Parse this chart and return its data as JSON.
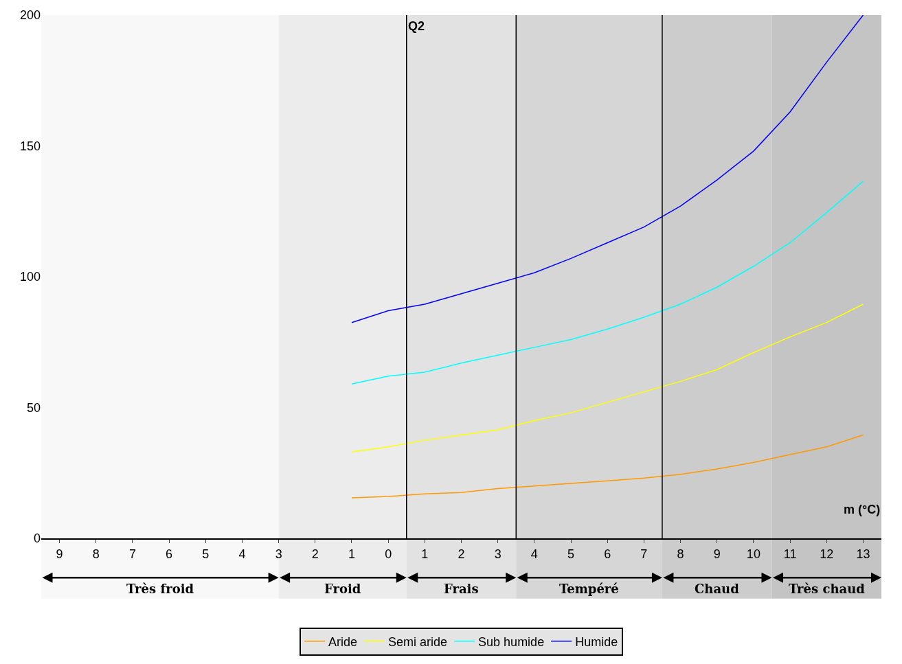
{
  "chart_data": {
    "type": "line",
    "xlabel": "m (°C)",
    "ylabel": "Q2",
    "x": [
      -1,
      0,
      1,
      2,
      3,
      4,
      5,
      6,
      7,
      8,
      9,
      10,
      11,
      12,
      13
    ],
    "series": [
      {
        "name": "Aride",
        "color": "#ff9900",
        "values": [
          15.5,
          16,
          17,
          17.5,
          19,
          20,
          21,
          22,
          23,
          24.5,
          26.5,
          29,
          32,
          35,
          39.5
        ]
      },
      {
        "name": "Semi aride",
        "color": "#ffff00",
        "values": [
          33,
          35,
          37.5,
          39.5,
          41.5,
          45,
          48,
          52,
          56,
          60,
          64.5,
          71,
          77,
          82.5,
          89.5
        ]
      },
      {
        "name": "Sub humide",
        "color": "#00ffff",
        "values": [
          59,
          62,
          63.5,
          67,
          70,
          73,
          76,
          80,
          84.5,
          89.5,
          96,
          104,
          113,
          124.5,
          136.5
        ]
      },
      {
        "name": "Humide",
        "color": "#0000ff",
        "values": [
          82.5,
          87,
          89.5,
          93.5,
          97.5,
          101.5,
          107,
          113,
          119,
          127,
          137,
          148,
          163,
          182,
          200
        ]
      }
    ],
    "xlim": [
      -9.5,
      13.5
    ],
    "ylim": [
      0,
      200
    ],
    "xticks": [
      {
        "value": -9,
        "label": "9"
      },
      {
        "value": -8,
        "label": "8"
      },
      {
        "value": -7,
        "label": "7"
      },
      {
        "value": -6,
        "label": "6"
      },
      {
        "value": -5,
        "label": "5"
      },
      {
        "value": -4,
        "label": "4"
      },
      {
        "value": -3,
        "label": "3"
      },
      {
        "value": -2,
        "label": "2"
      },
      {
        "value": -1,
        "label": "1"
      },
      0,
      1,
      2,
      3,
      4,
      5,
      6,
      7,
      8,
      9,
      10,
      11,
      12,
      13
    ],
    "yticks": [
      0,
      50,
      100,
      150,
      200
    ],
    "ref_lines": [
      {
        "axis": "x",
        "value": 0.5,
        "color": "#000000"
      },
      {
        "axis": "x",
        "value": 3.5,
        "color": "#000000"
      },
      {
        "axis": "x",
        "value": 7.5,
        "color": "#000000"
      }
    ],
    "bands": [
      {
        "axis": "x",
        "from": -9.5,
        "to": -3,
        "label": "Très froid",
        "color": "#f8f8f8"
      },
      {
        "axis": "x",
        "from": -3,
        "to": 0.5,
        "label": "Froid",
        "color": "#ececec"
      },
      {
        "axis": "x",
        "from": 0.5,
        "to": 3.5,
        "label": "Frais",
        "color": "#e2e2e2"
      },
      {
        "axis": "x",
        "from": 3.5,
        "to": 7.5,
        "label": "Tempéré",
        "color": "#d6d6d6"
      },
      {
        "axis": "x",
        "from": 7.5,
        "to": 10.5,
        "label": "Chaud",
        "color": "#cccccc"
      },
      {
        "axis": "x",
        "from": 10.5,
        "to": 13.5,
        "label": "Très chaud",
        "color": "#c4c4c4"
      }
    ],
    "grid": false,
    "legend": "bottom",
    "marker": "none",
    "line_style": "solid"
  }
}
